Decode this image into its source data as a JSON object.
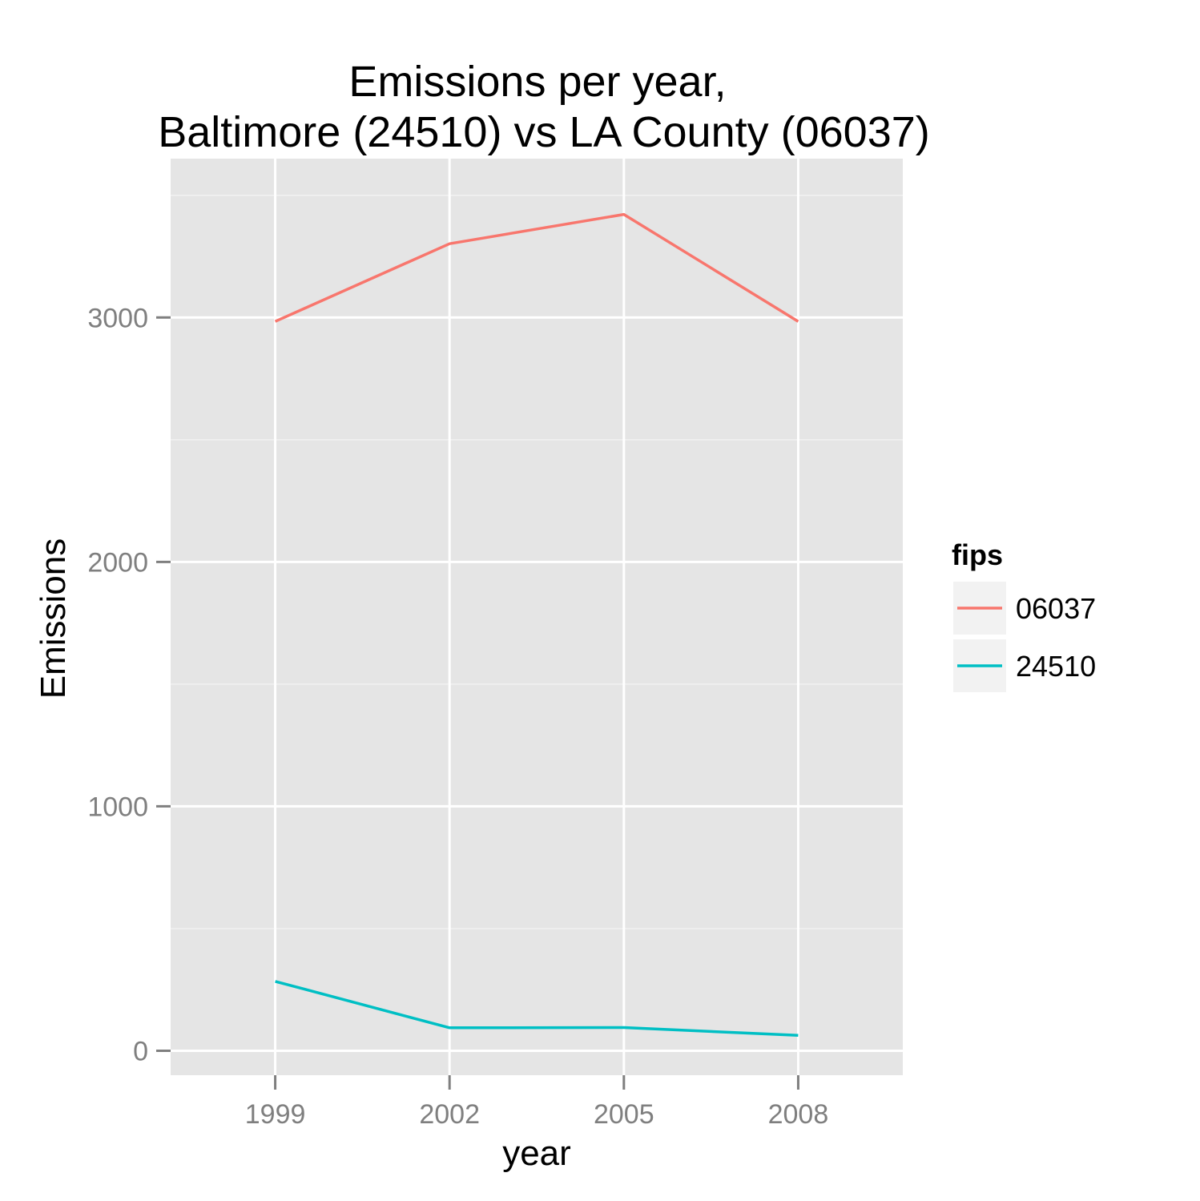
{
  "chart_data": {
    "type": "line",
    "title_line1": "Emissions per year,",
    "title_line2": "Baltimore (24510) vs LA County (06037)",
    "xlabel": "year",
    "ylabel": "Emissions",
    "x": [
      1999,
      2002,
      2005,
      2008
    ],
    "x_ticks": [
      "1999",
      "2002",
      "2005",
      "2008"
    ],
    "y_ticks": [
      "0",
      "1000",
      "2000",
      "3000"
    ],
    "ylim": [
      -100,
      3650
    ],
    "xlim": [
      1997.2,
      2009.8
    ],
    "grid": true,
    "legend": {
      "title": "fips",
      "placement": "right"
    },
    "series": [
      {
        "name": "06037",
        "color": "#F8766D",
        "values": [
          2984,
          3302,
          3422,
          2984
        ]
      },
      {
        "name": "24510",
        "color": "#00BFC4",
        "values": [
          284,
          94,
          95,
          63
        ]
      }
    ],
    "colors": {
      "panel_bg": "#E5E5E5",
      "grid_major": "#FFFFFF",
      "grid_minor": "#F2F2F2",
      "tick": "#7F7F7F",
      "legend_key_bg": "#F2F2F2"
    }
  }
}
